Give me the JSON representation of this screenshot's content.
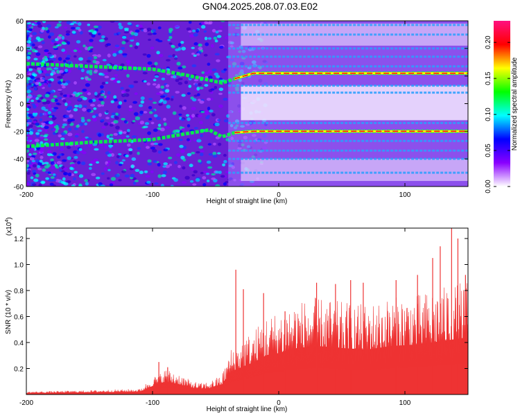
{
  "title": "GN04.2025.208.07.03.E02",
  "chart_data": [
    {
      "type": "heatmap",
      "xlabel": "Height of straight line (km)",
      "ylabel": "Frequency (Hz)",
      "xlim": [
        -200,
        150
      ],
      "ylim": [
        -60,
        60
      ],
      "xticks": [
        -200,
        -100,
        0,
        100
      ],
      "yticks": [
        -60,
        -40,
        -20,
        0,
        20,
        40,
        60
      ],
      "colorbar": {
        "label": "Normalized spectral amplitude",
        "range": [
          0.0,
          0.23
        ],
        "ticks": [
          "0.00",
          "0.05",
          "0.10",
          "0.15",
          "0.20"
        ],
        "colors": [
          "#ffffff",
          "#8a00ff",
          "#0000ff",
          "#00ffff",
          "#00ff00",
          "#ffff00",
          "#ff0000",
          "#ff1080"
        ]
      },
      "ridges": [
        {
          "x": [
            -200,
            -150,
            -100,
            -75,
            -55,
            -45,
            -35,
            -20,
            0,
            50,
            100,
            150
          ],
          "y": [
            29,
            27,
            25,
            21,
            17,
            15,
            18,
            22,
            22,
            22,
            22,
            22
          ]
        },
        {
          "x": [
            -200,
            -150,
            -100,
            -75,
            -55,
            -45,
            -35,
            -20,
            0,
            50,
            100,
            150
          ],
          "y": [
            -31,
            -28,
            -26,
            -22,
            -19,
            -24,
            -21,
            -20,
            -20,
            -20,
            -20,
            -20
          ]
        }
      ],
      "harmonic_lines_hz": [
        -50,
        -40,
        -34,
        -27,
        -14,
        8,
        13,
        27,
        34,
        40,
        50,
        57
      ]
    },
    {
      "type": "area",
      "xlabel": "Height of straight line (km)",
      "ylabel": "SNR (10 * v/v)",
      "yscale_label": "(x10",
      "yscale_exp": "4",
      "xlim": [
        -200,
        150
      ],
      "ylim": [
        0,
        1.28
      ],
      "xticks": [
        -200,
        -100,
        0,
        100
      ],
      "yticks": [
        "0.2",
        "0.4",
        "0.6",
        "0.8",
        "1.0",
        "1.2"
      ],
      "color": "#ee3333",
      "envelope": {
        "x": [
          -200,
          -150,
          -110,
          -100,
          -90,
          -80,
          -70,
          -62,
          -55,
          -45,
          -38,
          -30,
          -20,
          -10,
          0,
          10,
          20,
          30,
          50,
          70,
          90,
          110,
          130,
          150
        ],
        "y": [
          0.02,
          0.03,
          0.04,
          0.12,
          0.18,
          0.15,
          0.1,
          0.08,
          0.09,
          0.14,
          0.32,
          0.38,
          0.45,
          0.55,
          0.58,
          0.64,
          0.66,
          0.68,
          0.65,
          0.63,
          0.68,
          0.7,
          0.75,
          0.8
        ]
      },
      "peaks": [
        {
          "x": -95,
          "y": 0.25
        },
        {
          "x": -88,
          "y": 0.21
        },
        {
          "x": -34,
          "y": 0.96
        },
        {
          "x": -28,
          "y": 0.81
        },
        {
          "x": -12,
          "y": 0.78
        },
        {
          "x": 5,
          "y": 0.64
        },
        {
          "x": 30,
          "y": 0.86
        },
        {
          "x": 45,
          "y": 0.85
        },
        {
          "x": 57,
          "y": 0.88
        },
        {
          "x": 67,
          "y": 0.86
        },
        {
          "x": 93,
          "y": 0.88
        },
        {
          "x": 110,
          "y": 0.92
        },
        {
          "x": 122,
          "y": 1.05
        },
        {
          "x": 128,
          "y": 1.14
        },
        {
          "x": 137,
          "y": 1.28
        },
        {
          "x": 142,
          "y": 1.2
        },
        {
          "x": 148,
          "y": 0.92
        }
      ]
    }
  ]
}
